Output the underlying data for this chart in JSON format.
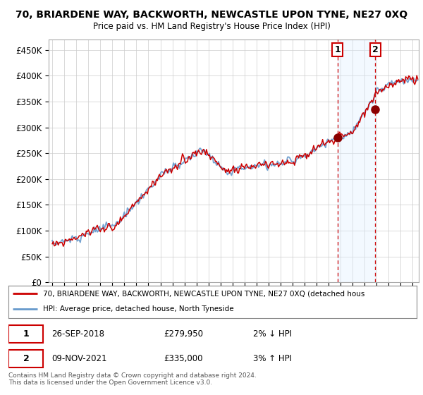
{
  "title_line1": "70, BRIARDENE WAY, BACKWORTH, NEWCASTLE UPON TYNE, NE27 0XQ",
  "title_line2": "Price paid vs. HM Land Registry's House Price Index (HPI)",
  "ylim": [
    0,
    470000
  ],
  "yticks": [
    0,
    50000,
    100000,
    150000,
    200000,
    250000,
    300000,
    350000,
    400000,
    450000
  ],
  "ytick_labels": [
    "£0",
    "£50K",
    "£100K",
    "£150K",
    "£200K",
    "£250K",
    "£300K",
    "£350K",
    "£400K",
    "£450K"
  ],
  "hpi_color": "#6699cc",
  "price_color": "#cc0000",
  "sale1_year": 2018.75,
  "sale1_price": 279950,
  "sale2_year": 2021.87,
  "sale2_price": 335000,
  "sale1_date": "26-SEP-2018",
  "sale1_hpi_diff": "2% ↓ HPI",
  "sale2_date": "09-NOV-2021",
  "sale2_hpi_diff": "3% ↑ HPI",
  "legend_line1": "70, BRIARDENE WAY, BACKWORTH, NEWCASTLE UPON TYNE, NE27 0XQ (detached hous",
  "legend_line2": "HPI: Average price, detached house, North Tyneside",
  "footer": "Contains HM Land Registry data © Crown copyright and database right 2024.\nThis data is licensed under the Open Government Licence v3.0.",
  "bg_color": "#ffffff",
  "plot_bg_color": "#ffffff",
  "grid_color": "#cccccc",
  "highlight_bg_color": "#ddeeff",
  "highlight_alpha": 0.35
}
